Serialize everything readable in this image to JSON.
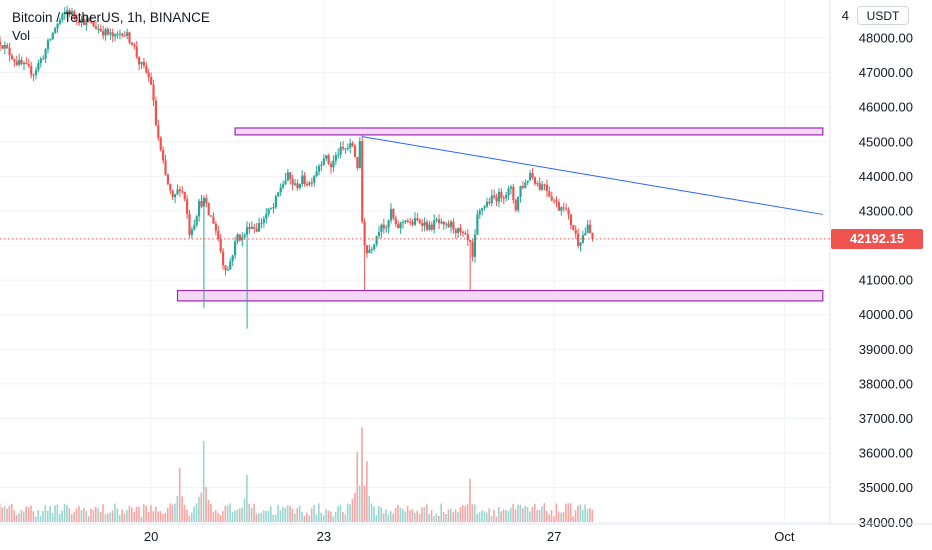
{
  "legend": {
    "symbol": "Bitcoin / TetherUS, 1h, BINANCE",
    "volume_label": "Vol"
  },
  "currency": "USDT",
  "last_price": "42192.15",
  "colors": {
    "up": "#26a69a",
    "down": "#ef5350",
    "zone_fill": "#f3d9f6",
    "zone_stroke": "#9c27b0",
    "trendline": "#2962ff"
  },
  "chart_data": {
    "type": "candlestick",
    "y_ticks": [
      34000,
      35000,
      36000,
      37000,
      38000,
      39000,
      40000,
      41000,
      42000,
      43000,
      44000,
      45000,
      46000,
      47000,
      48000
    ],
    "y_tick_labels": [
      "34000.00",
      "35000.00",
      "36000.00",
      "37000.00",
      "38000.00",
      "39000.00",
      "40000.00",
      "41000.00",
      "42000.00",
      "43000.00",
      "44000.00",
      "45000.00",
      "46000.00",
      "47000.00",
      "48000.00"
    ],
    "top_partial_label": "4",
    "ylim": [
      33950,
      49100
    ],
    "x_ticks": [
      {
        "label": "20",
        "hour": 0
      },
      {
        "label": "23",
        "hour": 72
      },
      {
        "label": "27",
        "hour": 168
      },
      {
        "label": "Oct",
        "hour": 264
      }
    ],
    "xlim_hours": [
      -63,
      283
    ],
    "price_path": [
      [
        -63,
        47900
      ],
      [
        -56,
        47300
      ],
      [
        -49,
        47000
      ],
      [
        -45,
        47500
      ],
      [
        -40,
        48300
      ],
      [
        -35,
        48800
      ],
      [
        -30,
        48550
      ],
      [
        -25,
        48400
      ],
      [
        -20,
        48200
      ],
      [
        -15,
        48000
      ],
      [
        -12,
        48200
      ],
      [
        -8,
        47900
      ],
      [
        -5,
        47300
      ],
      [
        -2,
        47000
      ],
      [
        0,
        46700
      ],
      [
        2,
        45500
      ],
      [
        4,
        44700
      ],
      [
        6,
        44000
      ],
      [
        9,
        43300
      ],
      [
        12,
        43700
      ],
      [
        14,
        43400
      ],
      [
        16,
        42400
      ],
      [
        18,
        42700
      ],
      [
        20,
        43200
      ],
      [
        22,
        43300
      ],
      [
        24,
        42900
      ],
      [
        26,
        42700
      ],
      [
        28,
        42200
      ],
      [
        30,
        41500
      ],
      [
        32,
        41300
      ],
      [
        34,
        41800
      ],
      [
        36,
        42300
      ],
      [
        38,
        42200
      ],
      [
        41,
        42600
      ],
      [
        44,
        42500
      ],
      [
        48,
        42900
      ],
      [
        51,
        43100
      ],
      [
        54,
        43700
      ],
      [
        57,
        44000
      ],
      [
        60,
        43700
      ],
      [
        63,
        43900
      ],
      [
        66,
        43800
      ],
      [
        69,
        44200
      ],
      [
        72,
        44600
      ],
      [
        75,
        44300
      ],
      [
        78,
        44700
      ],
      [
        81,
        44800
      ],
      [
        84,
        44900
      ],
      [
        86,
        44300
      ],
      [
        87,
        44900
      ],
      [
        88,
        42700
      ],
      [
        89,
        42100
      ],
      [
        90,
        41800
      ],
      [
        92,
        42000
      ],
      [
        94,
        42300
      ],
      [
        96,
        42700
      ],
      [
        98,
        42400
      ],
      [
        100,
        43000
      ],
      [
        102,
        42500
      ],
      [
        104,
        42600
      ],
      [
        106,
        42800
      ],
      [
        108,
        42600
      ],
      [
        110,
        42700
      ],
      [
        113,
        42700
      ],
      [
        116,
        42500
      ],
      [
        119,
        42700
      ],
      [
        122,
        42500
      ],
      [
        125,
        42600
      ],
      [
        128,
        42400
      ],
      [
        131,
        42200
      ],
      [
        133,
        42000
      ],
      [
        134,
        41600
      ],
      [
        136,
        42800
      ],
      [
        138,
        43100
      ],
      [
        141,
        43300
      ],
      [
        144,
        43400
      ],
      [
        147,
        43500
      ],
      [
        150,
        43600
      ],
      [
        152,
        43100
      ],
      [
        154,
        43700
      ],
      [
        156,
        43800
      ],
      [
        158,
        44100
      ],
      [
        160,
        43900
      ],
      [
        162,
        43700
      ],
      [
        164,
        43800
      ],
      [
        166,
        43500
      ],
      [
        168,
        43300
      ],
      [
        170,
        43100
      ],
      [
        172,
        43200
      ],
      [
        174,
        42800
      ],
      [
        176,
        42500
      ],
      [
        178,
        42100
      ],
      [
        180,
        42300
      ],
      [
        182,
        42500
      ],
      [
        184,
        42192
      ]
    ],
    "wicks": [
      {
        "hour": 22,
        "low": 40200
      },
      {
        "hour": 40,
        "low": 39600
      },
      {
        "hour": 89,
        "low": 40700
      },
      {
        "hour": 133,
        "low": 40700
      },
      {
        "hour": 88,
        "high": 45200
      },
      {
        "hour": 56,
        "high": 44100
      }
    ],
    "volume_peaks": [
      {
        "hour": 12,
        "value": 0.4
      },
      {
        "hour": 22,
        "value": 0.6
      },
      {
        "hour": 40,
        "value": 0.35
      },
      {
        "hour": 86,
        "value": 0.52
      },
      {
        "hour": 88,
        "value": 0.7
      },
      {
        "hour": 90,
        "value": 0.45
      },
      {
        "hour": 133,
        "value": 0.32
      },
      {
        "hour": 178,
        "value": 0.12
      }
    ],
    "zones": [
      {
        "name": "resistance-zone",
        "start_hour": 35,
        "end_hour": 280,
        "top": 45400,
        "bottom": 45200
      },
      {
        "name": "support-zone",
        "start_hour": 11,
        "end_hour": 280,
        "top": 40700,
        "bottom": 40400
      }
    ],
    "trendline": {
      "start_hour": 88,
      "start_price": 45150,
      "end_hour": 280,
      "end_price": 42900
    },
    "current_price_line": 42192.15
  }
}
